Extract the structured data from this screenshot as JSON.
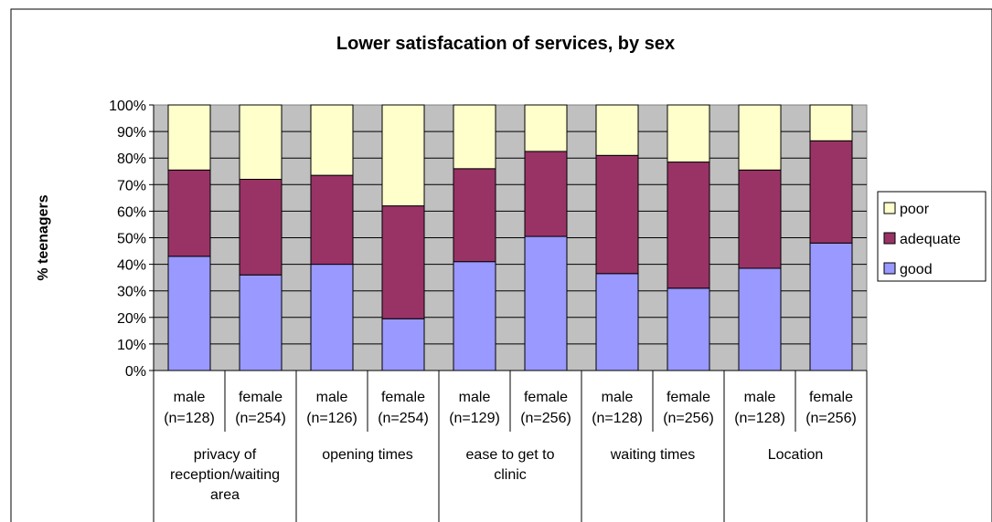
{
  "chart_data": {
    "type": "bar",
    "stacked": true,
    "percent_stacked": true,
    "title": "Lower satisfacation of services, by sex",
    "ylabel": "% teenagers",
    "xlabel": "",
    "ylim": [
      0,
      100
    ],
    "yticks": [
      "0%",
      "10%",
      "20%",
      "30%",
      "40%",
      "50%",
      "60%",
      "70%",
      "80%",
      "90%",
      "100%"
    ],
    "grid": true,
    "legend_position": "right",
    "categories": [
      [
        "male",
        "(n=128)"
      ],
      [
        "female",
        "(n=254)"
      ],
      [
        "male",
        "(n=126)"
      ],
      [
        "female",
        "(n=254)"
      ],
      [
        "male",
        "(n=129)"
      ],
      [
        "female",
        "(n=256)"
      ],
      [
        "male",
        "(n=128)"
      ],
      [
        "female",
        "(n=256)"
      ],
      [
        "male",
        "(n=128)"
      ],
      [
        "female",
        "(n=256)"
      ]
    ],
    "groups": [
      [
        "privacy of",
        "reception/waiting",
        "area"
      ],
      [
        "opening times"
      ],
      [
        "ease to get to",
        "clinic"
      ],
      [
        "waiting times"
      ],
      [
        "Location"
      ]
    ],
    "series": [
      {
        "name": "good",
        "color": "#9999ff",
        "values": [
          43,
          36,
          40,
          19.5,
          41,
          50.5,
          36.5,
          31,
          38.5,
          48
        ]
      },
      {
        "name": "adequate",
        "color": "#993366",
        "values": [
          32.5,
          36,
          33.5,
          42.5,
          35,
          32,
          44.5,
          47.5,
          37,
          38.5
        ]
      },
      {
        "name": "poor",
        "color": "#ffffcc",
        "values": [
          24.5,
          28,
          26.5,
          38,
          24,
          17.5,
          19,
          21.5,
          24.5,
          13.5
        ]
      }
    ],
    "legend_order": [
      "poor",
      "adequate",
      "good"
    ],
    "plot_background": "#c0c0c0"
  }
}
